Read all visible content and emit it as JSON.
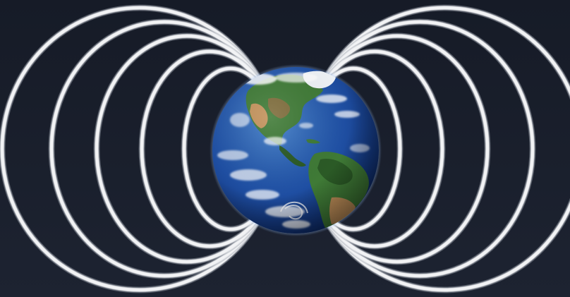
{
  "scene": {
    "subject": "earth-globe",
    "decoration": "magnetic-field-rings",
    "colors": {
      "background_top": "#161b27",
      "background_bottom": "#1d2331",
      "ring": "#f2f3f5",
      "ring_shadow": "#9aa0aa",
      "ocean_deep": "#0b2766",
      "ocean_mid": "#1f4fa3",
      "ocean_light": "#3f7cc8",
      "land_green": "#3f7a36",
      "land_dark_green": "#2b5a26",
      "land_desert": "#c2915a",
      "land_brown": "#8a6a3c",
      "cloud": "#ffffff",
      "ice": "#eef2f6"
    }
  }
}
